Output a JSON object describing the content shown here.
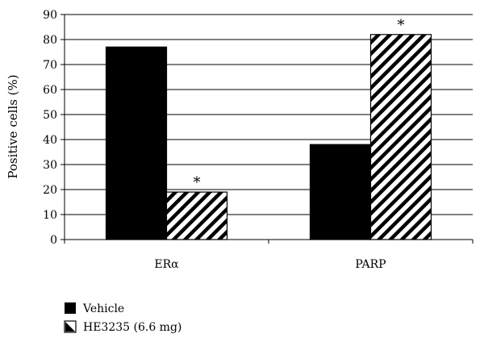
{
  "chart_data": {
    "type": "bar",
    "title": "",
    "xlabel": "",
    "ylabel": "Positive cells (%)",
    "categories": [
      "ERα",
      "PARP"
    ],
    "series": [
      {
        "name": "Vehicle",
        "values": [
          77,
          38
        ],
        "fill": "solid",
        "color": "#000000"
      },
      {
        "name": "HE3235 (6.6 mg)",
        "values": [
          19,
          82
        ],
        "fill": "diagonal-hatch",
        "color": "#000000"
      }
    ],
    "annotations": [
      {
        "series": 1,
        "category": 0,
        "text": "*"
      },
      {
        "series": 1,
        "category": 1,
        "text": "*"
      }
    ],
    "ylim": [
      0,
      90
    ],
    "yticks": [
      0,
      10,
      20,
      30,
      40,
      50,
      60,
      70,
      80,
      90
    ],
    "grid": "horizontal",
    "legend_position": "bottom-left"
  }
}
